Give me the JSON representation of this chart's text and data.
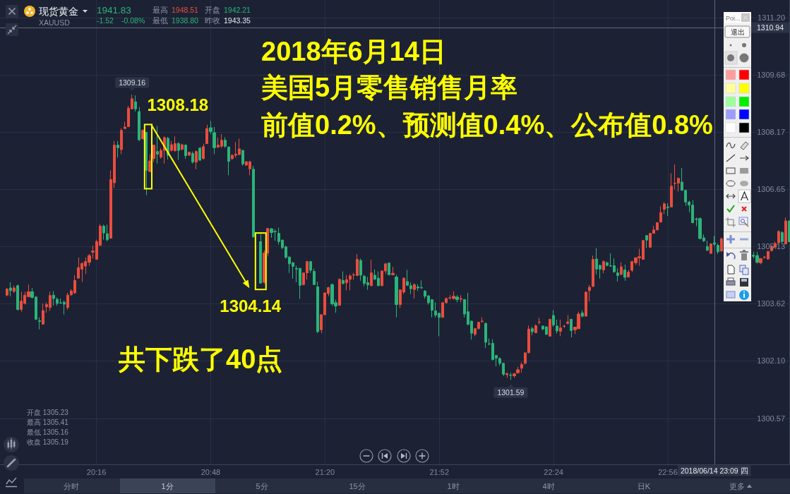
{
  "chart_data": {
    "type": "candlestick",
    "x": [
      "2018-06-14T19:51",
      "2018-06-14T19:52",
      "2018-06-14T19:53",
      "2018-06-14T19:54",
      "2018-06-14T19:55",
      "2018-06-14T19:56",
      "2018-06-14T19:57",
      "2018-06-14T19:58",
      "2018-06-14T19:59",
      "2018-06-14T20:00",
      "2018-06-14T20:01",
      "2018-06-14T20:02",
      "2018-06-14T20:03",
      "2018-06-14T20:04",
      "2018-06-14T20:05",
      "2018-06-14T20:06",
      "2018-06-14T20:07",
      "2018-06-14T20:08",
      "2018-06-14T20:09",
      "2018-06-14T20:10",
      "2018-06-14T20:11",
      "2018-06-14T20:12",
      "2018-06-14T20:13",
      "2018-06-14T20:14",
      "2018-06-14T20:15",
      "2018-06-14T20:16",
      "2018-06-14T20:17",
      "2018-06-14T20:18",
      "2018-06-14T20:19",
      "2018-06-14T20:20",
      "2018-06-14T20:21",
      "2018-06-14T20:22",
      "2018-06-14T20:23",
      "2018-06-14T20:24",
      "2018-06-14T20:25",
      "2018-06-14T20:26",
      "2018-06-14T20:27",
      "2018-06-14T20:28",
      "2018-06-14T20:29",
      "2018-06-14T20:30",
      "2018-06-14T20:31",
      "2018-06-14T20:32",
      "2018-06-14T20:33",
      "2018-06-14T20:34",
      "2018-06-14T20:35",
      "2018-06-14T20:36",
      "2018-06-14T20:37",
      "2018-06-14T20:38",
      "2018-06-14T20:39",
      "2018-06-14T20:40",
      "2018-06-14T20:41",
      "2018-06-14T20:42",
      "2018-06-14T20:43",
      "2018-06-14T20:44",
      "2018-06-14T20:45",
      "2018-06-14T20:46",
      "2018-06-14T20:47",
      "2018-06-14T20:48",
      "2018-06-14T20:49",
      "2018-06-14T20:50",
      "2018-06-14T20:51",
      "2018-06-14T20:52",
      "2018-06-14T20:53",
      "2018-06-14T20:54",
      "2018-06-14T20:55",
      "2018-06-14T20:56",
      "2018-06-14T20:57",
      "2018-06-14T20:58",
      "2018-06-14T20:59",
      "2018-06-14T21:00",
      "2018-06-14T21:02",
      "2018-06-14T21:03",
      "2018-06-14T21:04",
      "2018-06-14T21:05",
      "2018-06-14T21:06",
      "2018-06-14T21:07",
      "2018-06-14T21:08",
      "2018-06-14T21:09",
      "2018-06-14T21:10",
      "2018-06-14T21:11",
      "2018-06-14T21:12",
      "2018-06-14T21:13",
      "2018-06-14T21:14",
      "2018-06-14T21:15",
      "2018-06-14T21:16",
      "2018-06-14T21:17",
      "2018-06-14T21:18",
      "2018-06-14T21:19",
      "2018-06-14T21:20",
      "2018-06-14T21:21",
      "2018-06-14T21:22",
      "2018-06-14T21:23",
      "2018-06-14T21:24",
      "2018-06-14T21:25",
      "2018-06-14T21:26",
      "2018-06-14T21:27",
      "2018-06-14T21:28",
      "2018-06-14T21:29",
      "2018-06-14T21:30",
      "2018-06-14T21:31",
      "2018-06-14T21:32",
      "2018-06-14T21:33",
      "2018-06-14T21:34",
      "2018-06-14T21:35",
      "2018-06-14T21:36",
      "2018-06-14T21:37",
      "2018-06-14T21:38",
      "2018-06-14T21:39",
      "2018-06-14T21:40",
      "2018-06-14T21:41",
      "2018-06-14T21:42",
      "2018-06-14T21:43",
      "2018-06-14T21:44",
      "2018-06-14T21:45",
      "2018-06-14T21:46",
      "2018-06-14T21:47",
      "2018-06-14T21:48",
      "2018-06-14T21:49",
      "2018-06-14T21:50",
      "2018-06-14T21:51",
      "2018-06-14T21:52",
      "2018-06-14T21:53",
      "2018-06-14T21:54",
      "2018-06-14T21:55",
      "2018-06-14T21:56",
      "2018-06-14T21:57",
      "2018-06-14T21:58",
      "2018-06-14T21:59",
      "2018-06-14T22:00",
      "2018-06-14T22:01",
      "2018-06-14T22:02",
      "2018-06-14T22:03",
      "2018-06-14T22:04",
      "2018-06-14T22:05",
      "2018-06-14T22:06",
      "2018-06-14T22:07",
      "2018-06-14T22:08",
      "2018-06-14T22:09",
      "2018-06-14T22:10",
      "2018-06-14T22:11",
      "2018-06-14T22:12",
      "2018-06-14T22:13",
      "2018-06-14T22:14",
      "2018-06-14T22:15",
      "2018-06-14T22:16",
      "2018-06-14T22:17",
      "2018-06-14T22:18",
      "2018-06-14T22:19",
      "2018-06-14T22:20",
      "2018-06-14T22:21",
      "2018-06-14T22:22",
      "2018-06-14T22:23",
      "2018-06-14T22:24",
      "2018-06-14T22:25",
      "2018-06-14T22:26",
      "2018-06-14T22:27",
      "2018-06-14T22:28",
      "2018-06-14T22:29",
      "2018-06-14T22:30",
      "2018-06-14T22:31",
      "2018-06-14T22:32",
      "2018-06-14T22:33",
      "2018-06-14T22:34",
      "2018-06-14T22:35",
      "2018-06-14T22:36",
      "2018-06-14T22:37",
      "2018-06-14T22:38",
      "2018-06-14T22:39",
      "2018-06-14T22:40",
      "2018-06-14T22:41",
      "2018-06-14T22:42",
      "2018-06-14T22:43",
      "2018-06-14T22:44",
      "2018-06-14T22:45",
      "2018-06-14T22:46",
      "2018-06-14T22:47",
      "2018-06-14T22:48",
      "2018-06-14T22:49",
      "2018-06-14T22:50",
      "2018-06-14T22:51",
      "2018-06-14T22:52",
      "2018-06-14T22:53",
      "2018-06-14T22:54",
      "2018-06-14T22:55",
      "2018-06-14T22:56",
      "2018-06-14T22:57",
      "2018-06-14T22:58",
      "2018-06-14T22:59",
      "2018-06-14T23:00",
      "2018-06-14T23:01",
      "2018-06-14T23:02",
      "2018-06-14T23:03",
      "2018-06-14T23:04",
      "2018-06-14T23:05",
      "2018-06-14T23:06",
      "2018-06-14T23:07",
      "2018-06-14T23:08",
      "2018-06-14T23:09",
      "2018-06-14T23:10",
      "2018-06-14T23:11",
      "2018-06-14T23:20",
      "2018-06-14T23:21",
      "2018-06-14T23:22",
      "2018-06-14T23:23",
      "2018-06-14T23:24",
      "2018-06-14T23:25",
      "2018-06-14T23:26",
      "2018-06-14T23:27",
      "2018-06-14T23:28",
      "2018-06-14T23:29",
      "2018-06-14T23:30"
    ],
    "ohlc": [
      [
        1303.84,
        1304.03,
        1303.81,
        1304.0
      ],
      [
        1304.03,
        1304.18,
        1303.81,
        1303.96
      ],
      [
        1303.94,
        1304.09,
        1303.9,
        1304.03
      ],
      [
        1304.09,
        1304.12,
        1303.43,
        1303.46
      ],
      [
        1303.46,
        1303.93,
        1303.4,
        1303.68
      ],
      [
        1303.62,
        1303.93,
        1303.59,
        1303.84
      ],
      [
        1303.8,
        1304.12,
        1303.78,
        1303.93
      ],
      [
        1303.93,
        1304.03,
        1303.75,
        1303.78
      ],
      [
        1303.79,
        1303.81,
        1303.18,
        1303.2
      ],
      [
        1303.16,
        1303.25,
        1302.93,
        1303.14
      ],
      [
        1303.07,
        1303.62,
        1303.06,
        1303.43
      ],
      [
        1303.53,
        1303.65,
        1303.37,
        1303.59
      ],
      [
        1303.51,
        1303.93,
        1303.42,
        1303.83
      ],
      [
        1303.84,
        1303.95,
        1303.56,
        1303.75
      ],
      [
        1303.73,
        1303.78,
        1303.56,
        1303.62
      ],
      [
        1303.64,
        1303.75,
        1303.61,
        1303.63
      ],
      [
        1303.65,
        1303.7,
        1303.33,
        1303.6
      ],
      [
        1303.51,
        1303.9,
        1303.45,
        1303.84
      ],
      [
        1303.85,
        1304.0,
        1303.82,
        1303.95
      ],
      [
        1303.9,
        1304.37,
        1303.87,
        1304.23
      ],
      [
        1304.29,
        1304.84,
        1304.28,
        1304.57
      ],
      [
        1304.53,
        1304.71,
        1304.19,
        1304.68
      ],
      [
        1304.61,
        1304.84,
        1304.4,
        1304.73
      ],
      [
        1304.71,
        1304.93,
        1304.62,
        1304.89
      ],
      [
        1304.98,
        1305.15,
        1304.81,
        1305.01
      ],
      [
        1304.79,
        1305.31,
        1304.78,
        1305.26
      ],
      [
        1305.16,
        1305.73,
        1305.15,
        1305.67
      ],
      [
        1305.67,
        1305.71,
        1305.31,
        1305.49
      ],
      [
        1305.47,
        1305.71,
        1305.27,
        1305.31
      ],
      [
        1305.35,
        1307.15,
        1305.34,
        1306.91
      ],
      [
        1306.82,
        1307.93,
        1306.68,
        1307.82
      ],
      [
        1307.82,
        1307.93,
        1307.49,
        1307.75
      ],
      [
        1307.7,
        1308.27,
        1307.58,
        1308.21
      ],
      [
        1308.26,
        1308.44,
        1308.24,
        1308.3
      ],
      [
        1308.31,
        1308.86,
        1308.3,
        1308.8
      ],
      [
        1308.78,
        1309.16,
        1308.77,
        1309.05
      ],
      [
        1308.97,
        1309.14,
        1308.71,
        1308.78
      ],
      [
        1308.71,
        1308.83,
        1307.93,
        1307.96
      ],
      [
        1307.99,
        1308.24,
        1307.96,
        1308.21
      ],
      [
        1308.16,
        1308.18,
        1306.49,
        1307.15
      ],
      [
        1307.12,
        1307.58,
        1307.1,
        1307.4
      ],
      [
        1307.46,
        1307.83,
        1307.37,
        1307.82
      ],
      [
        1307.65,
        1308.33,
        1307.33,
        1307.58
      ],
      [
        1307.5,
        1307.74,
        1307.46,
        1307.68
      ],
      [
        1307.68,
        1308.05,
        1307.33,
        1308.02
      ],
      [
        1308.0,
        1308.04,
        1307.44,
        1307.55
      ],
      [
        1307.68,
        1307.93,
        1307.65,
        1307.83
      ],
      [
        1307.67,
        1308.05,
        1307.65,
        1307.86
      ],
      [
        1307.86,
        1307.9,
        1307.43,
        1307.68
      ],
      [
        1307.71,
        1307.86,
        1307.68,
        1307.83
      ],
      [
        1307.82,
        1307.84,
        1307.46,
        1307.54
      ],
      [
        1307.55,
        1307.65,
        1307.54,
        1307.63
      ],
      [
        1307.6,
        1307.65,
        1307.33,
        1307.37
      ],
      [
        1307.37,
        1307.68,
        1307.18,
        1307.65
      ],
      [
        1307.74,
        1307.77,
        1307.4,
        1307.42
      ],
      [
        1307.46,
        1307.86,
        1307.44,
        1307.78
      ],
      [
        1307.86,
        1308.36,
        1307.85,
        1308.26
      ],
      [
        1308.28,
        1308.46,
        1308.11,
        1308.18
      ],
      [
        1308.15,
        1308.3,
        1307.58,
        1307.75
      ],
      [
        1307.77,
        1308.02,
        1307.74,
        1307.82
      ],
      [
        1307.79,
        1308.11,
        1307.75,
        1307.95
      ],
      [
        1307.95,
        1308.03,
        1307.75,
        1307.79
      ],
      [
        1307.77,
        1307.78,
        1307.02,
        1307.39
      ],
      [
        1307.46,
        1307.58,
        1307.43,
        1307.55
      ],
      [
        1307.55,
        1307.9,
        1307.49,
        1307.58
      ],
      [
        1307.57,
        1307.99,
        1307.55,
        1307.72
      ],
      [
        1307.68,
        1307.69,
        1307.27,
        1307.32
      ],
      [
        1307.29,
        1307.4,
        1307.27,
        1307.38
      ],
      [
        1307.19,
        1307.4,
        1307.02,
        1307.38
      ],
      [
        1307.18,
        1307.27,
        1305.36,
        1305.39
      ],
      [
        1305.26,
        1305.46,
        1304.14,
        1304.16
      ],
      [
        1304.18,
        1305.03,
        1304.14,
        1304.96
      ],
      [
        1304.96,
        1305.62,
        1304.87,
        1305.61
      ],
      [
        1305.6,
        1305.62,
        1305.36,
        1305.5
      ],
      [
        1305.53,
        1305.59,
        1305.28,
        1305.52
      ],
      [
        1305.48,
        1305.63,
        1305.18,
        1305.26
      ],
      [
        1305.3,
        1305.31,
        1305.06,
        1305.1
      ],
      [
        1305.12,
        1305.15,
        1304.81,
        1304.84
      ],
      [
        1304.85,
        1304.87,
        1304.43,
        1304.67
      ],
      [
        1304.7,
        1304.72,
        1304.28,
        1304.6
      ],
      [
        1304.55,
        1304.62,
        1304.18,
        1304.53
      ],
      [
        1304.55,
        1304.56,
        1303.74,
        1304.1
      ],
      [
        1304.12,
        1304.44,
        1304.1,
        1304.43
      ],
      [
        1304.43,
        1304.75,
        1304.25,
        1304.73
      ],
      [
        1304.73,
        1304.75,
        1304.43,
        1304.5
      ],
      [
        1304.47,
        1304.54,
        1304.11,
        1304.12
      ],
      [
        1304.06,
        1304.2,
        1302.83,
        1302.87
      ],
      [
        1302.92,
        1303.34,
        1302.83,
        1303.32
      ],
      [
        1303.32,
        1303.91,
        1303.31,
        1303.9
      ],
      [
        1303.88,
        1304.06,
        1303.81,
        1304.04
      ],
      [
        1304.12,
        1304.15,
        1303.56,
        1303.61
      ],
      [
        1303.64,
        1303.72,
        1303.37,
        1303.55
      ],
      [
        1303.57,
        1304.28,
        1303.56,
        1304.26
      ],
      [
        1304.23,
        1304.47,
        1304.12,
        1304.15
      ],
      [
        1304.17,
        1304.37,
        1303.97,
        1304.25
      ],
      [
        1304.26,
        1304.4,
        1303.97,
        1304.35
      ],
      [
        1304.37,
        1304.43,
        1304.25,
        1304.38
      ],
      [
        1304.36,
        1304.93,
        1304.35,
        1304.79
      ],
      [
        1304.76,
        1304.81,
        1304.22,
        1304.37
      ],
      [
        1304.34,
        1304.38,
        1304.08,
        1304.15
      ],
      [
        1304.17,
        1304.32,
        1303.98,
        1304.11
      ],
      [
        1304.09,
        1304.78,
        1304.08,
        1304.43
      ],
      [
        1304.37,
        1304.52,
        1304.25,
        1304.26
      ],
      [
        1304.29,
        1304.47,
        1304.08,
        1304.09
      ],
      [
        1304.09,
        1304.5,
        1304.08,
        1304.48
      ],
      [
        1304.48,
        1304.69,
        1304.4,
        1304.67
      ],
      [
        1304.69,
        1304.71,
        1304.37,
        1304.38
      ],
      [
        1304.38,
        1304.59,
        1304.37,
        1304.42
      ],
      [
        1304.32,
        1304.38,
        1303.25,
        1303.59
      ],
      [
        1303.59,
        1303.99,
        1303.5,
        1303.98
      ],
      [
        1303.92,
        1304.31,
        1303.87,
        1304.29
      ],
      [
        1304.2,
        1304.51,
        1304.09,
        1304.1
      ],
      [
        1304.09,
        1304.18,
        1303.87,
        1304.01
      ],
      [
        1303.99,
        1304.15,
        1303.75,
        1304.12
      ],
      [
        1304.06,
        1304.13,
        1303.95,
        1304.03
      ],
      [
        1304.04,
        1304.23,
        1304.01,
        1304.03
      ],
      [
        1303.95,
        1303.97,
        1303.75,
        1303.81
      ],
      [
        1303.82,
        1303.84,
        1303.59,
        1303.64
      ],
      [
        1303.72,
        1303.73,
        1303.25,
        1303.44
      ],
      [
        1303.42,
        1303.65,
        1303.25,
        1303.31
      ],
      [
        1303.36,
        1303.37,
        1302.75,
        1303.25
      ],
      [
        1303.25,
        1303.65,
        1303.24,
        1303.64
      ],
      [
        1303.64,
        1303.78,
        1303.62,
        1303.75
      ],
      [
        1303.76,
        1303.84,
        1303.72,
        1303.77
      ],
      [
        1303.75,
        1303.94,
        1303.72,
        1303.81
      ],
      [
        1303.79,
        1303.84,
        1303.65,
        1303.72
      ],
      [
        1303.73,
        1303.84,
        1303.65,
        1303.75
      ],
      [
        1303.72,
        1303.74,
        1303.25,
        1303.34
      ],
      [
        1303.4,
        1303.9,
        1303.05,
        1303.06
      ],
      [
        1303.15,
        1303.16,
        1302.66,
        1302.83
      ],
      [
        1302.8,
        1302.97,
        1302.75,
        1302.95
      ],
      [
        1302.95,
        1303.13,
        1302.94,
        1303.12
      ],
      [
        1303.14,
        1303.25,
        1303.11,
        1303.15
      ],
      [
        1303.09,
        1303.11,
        1302.44,
        1302.59
      ],
      [
        1302.55,
        1302.69,
        1302.51,
        1302.54
      ],
      [
        1302.56,
        1302.67,
        1302.11,
        1302.13
      ],
      [
        1302.24,
        1302.25,
        1301.95,
        1302.17
      ],
      [
        1302.16,
        1302.19,
        1301.97,
        1302.03
      ],
      [
        1302.03,
        1302.05,
        1301.69,
        1301.74
      ],
      [
        1301.73,
        1301.78,
        1301.65,
        1301.76
      ],
      [
        1301.72,
        1301.78,
        1301.59,
        1301.71
      ],
      [
        1301.7,
        1301.78,
        1301.65,
        1301.75
      ],
      [
        1301.78,
        1301.94,
        1301.76,
        1301.86
      ],
      [
        1301.9,
        1302.06,
        1301.78,
        1302.0
      ],
      [
        1302.03,
        1302.32,
        1302.0,
        1302.31
      ],
      [
        1302.31,
        1303.03,
        1302.31,
        1302.94
      ],
      [
        1302.95,
        1303.0,
        1302.78,
        1302.87
      ],
      [
        1302.84,
        1303.06,
        1302.83,
        1303.03
      ],
      [
        1303.12,
        1303.24,
        1303.06,
        1303.13
      ],
      [
        1303.02,
        1303.03,
        1302.91,
        1302.94
      ],
      [
        1303.0,
        1303.01,
        1302.78,
        1302.8
      ],
      [
        1302.75,
        1303.21,
        1302.74,
        1303.2
      ],
      [
        1303.3,
        1303.44,
        1303.0,
        1303.05
      ],
      [
        1303.02,
        1303.19,
        1302.82,
        1302.89
      ],
      [
        1302.88,
        1303.19,
        1302.75,
        1302.97
      ],
      [
        1303.01,
        1303.05,
        1302.97,
        1303.02
      ],
      [
        1303.09,
        1303.31,
        1303.06,
        1303.13
      ],
      [
        1303.2,
        1303.21,
        1302.72,
        1302.9
      ],
      [
        1302.92,
        1303.0,
        1302.81,
        1302.99
      ],
      [
        1302.95,
        1303.4,
        1302.94,
        1303.34
      ],
      [
        1303.37,
        1303.44,
        1303.25,
        1303.28
      ],
      [
        1303.28,
        1303.94,
        1303.27,
        1303.92
      ],
      [
        1303.96,
        1304.11,
        1303.67,
        1304.05
      ],
      [
        1304.07,
        1304.89,
        1304.06,
        1304.79
      ],
      [
        1304.8,
        1305.09,
        1304.39,
        1304.53
      ],
      [
        1304.63,
        1304.65,
        1304.28,
        1304.53
      ],
      [
        1304.51,
        1304.76,
        1304.42,
        1304.73
      ],
      [
        1304.7,
        1304.73,
        1304.6,
        1304.63
      ],
      [
        1304.62,
        1304.95,
        1304.59,
        1304.61
      ],
      [
        1304.62,
        1304.81,
        1304.43,
        1304.46
      ],
      [
        1304.43,
        1304.55,
        1304.2,
        1304.36
      ],
      [
        1304.39,
        1304.71,
        1304.37,
        1304.59
      ],
      [
        1304.51,
        1304.65,
        1304.22,
        1304.31
      ],
      [
        1304.32,
        1304.51,
        1304.31,
        1304.45
      ],
      [
        1304.5,
        1304.75,
        1304.45,
        1304.73
      ],
      [
        1304.7,
        1304.84,
        1304.64,
        1304.83
      ],
      [
        1304.83,
        1305.07,
        1304.62,
        1304.86
      ],
      [
        1304.79,
        1305.3,
        1304.78,
        1305.29
      ],
      [
        1305.42,
        1305.43,
        1305.09,
        1305.3
      ],
      [
        1305.11,
        1305.49,
        1305.1,
        1305.48
      ],
      [
        1305.48,
        1305.68,
        1305.47,
        1305.57
      ],
      [
        1305.57,
        1305.78,
        1305.56,
        1305.76
      ],
      [
        1305.78,
        1306.2,
        1305.76,
        1306.03
      ],
      [
        1306.12,
        1306.31,
        1305.99,
        1306.26
      ],
      [
        1306.18,
        1306.28,
        1305.94,
        1306.16
      ],
      [
        1306.18,
        1307.07,
        1306.17,
        1306.73
      ],
      [
        1306.8,
        1307.31,
        1306.65,
        1306.81
      ],
      [
        1306.81,
        1306.96,
        1306.59,
        1306.94
      ],
      [
        1306.84,
        1307.21,
        1306.61,
        1306.62
      ],
      [
        1306.62,
        1306.63,
        1306.21,
        1306.31
      ],
      [
        1306.31,
        1306.34,
        1306.04,
        1306.23
      ],
      [
        1306.23,
        1306.36,
        1305.75,
        1305.76
      ],
      [
        1305.86,
        1305.9,
        1305.67,
        1305.85
      ],
      [
        1305.87,
        1305.9,
        1305.32,
        1305.34
      ],
      [
        1305.36,
        1305.45,
        1305.25,
        1305.28
      ],
      [
        1305.13,
        1305.28,
        1305.01,
        1305.03
      ],
      [
        1304.95,
        1305.21,
        1304.93,
        1305.2
      ],
      [
        1305.23,
        1305.41,
        1305.16,
        1305.19
      ],
      [
        1305.16,
        1305.21,
        1304.93,
        1304.99
      ],
      [
        1305.01,
        1305.37,
        1304.99,
        1305.33
      ],
      [
        1304.9,
        1304.99,
        1304.81,
        1304.87
      ],
      [
        1304.89,
        1304.99,
        1304.68,
        1304.71
      ],
      [
        1304.7,
        1304.82,
        1304.66,
        1304.81
      ],
      [
        1304.84,
        1304.88,
        1304.81,
        1304.85
      ],
      [
        1304.8,
        1305.01,
        1304.78,
        1305.0
      ],
      [
        1305.02,
        1305.15,
        1305.0,
        1305.12
      ],
      [
        1305.11,
        1305.26,
        1305.09,
        1305.21
      ],
      [
        1305.23,
        1305.56,
        1305.21,
        1305.53
      ],
      [
        1305.5,
        1305.54,
        1305.21,
        1305.26
      ],
      [
        1305.2,
        1305.9,
        1305.19,
        1305.81
      ],
      [
        1305.8,
        1305.83,
        1305.25,
        1305.26
      ]
    ],
    "colors": [
      "#eb4d3d",
      "#2bb47a",
      "#eb4d3d",
      "#2bb47a",
      "#eb4d3d",
      "#eb4d3d",
      "#eb4d3d",
      "#2bb47a",
      "#2bb47a",
      "#2bb47a",
      "#eb4d3d",
      "#eb4d3d",
      "#eb4d3d",
      "#2bb47a",
      "#2bb47a",
      "#2bb47a",
      "#2bb47a",
      "#eb4d3d",
      "#eb4d3d",
      "#eb4d3d",
      "#eb4d3d",
      "#eb4d3d",
      "#eb4d3d",
      "#eb4d3d",
      "#eb4d3d",
      "#eb4d3d",
      "#eb4d3d",
      "#2bb47a",
      "#2bb47a",
      "#eb4d3d",
      "#eb4d3d",
      "#2bb47a",
      "#eb4d3d",
      "#eb4d3d",
      "#eb4d3d",
      "#eb4d3d",
      "#2bb47a",
      "#2bb47a",
      "#eb4d3d",
      "#2bb47a",
      "#eb4d3d",
      "#eb4d3d",
      "#2bb47a",
      "#eb4d3d",
      "#eb4d3d",
      "#2bb47a",
      "#eb4d3d",
      "#eb4d3d",
      "#2bb47a",
      "#eb4d3d",
      "#2bb47a",
      "#eb4d3d",
      "#2bb47a",
      "#eb4d3d",
      "#2bb47a",
      "#eb4d3d",
      "#eb4d3d",
      "#2bb47a",
      "#2bb47a",
      "#eb4d3d",
      "#eb4d3d",
      "#2bb47a",
      "#2bb47a",
      "#eb4d3d",
      "#eb4d3d",
      "#eb4d3d",
      "#2bb47a",
      "#eb4d3d",
      "#eb4d3d",
      "#2bb47a",
      "#2bb47a",
      "#eb4d3d",
      "#eb4d3d",
      "#2bb47a",
      "#2bb47a",
      "#2bb47a",
      "#2bb47a",
      "#2bb47a",
      "#2bb47a",
      "#2bb47a",
      "#2bb47a",
      "#2bb47a",
      "#eb4d3d",
      "#eb4d3d",
      "#2bb47a",
      "#2bb47a",
      "#2bb47a",
      "#eb4d3d",
      "#eb4d3d",
      "#eb4d3d",
      "#2bb47a",
      "#2bb47a",
      "#eb4d3d",
      "#2bb47a",
      "#eb4d3d",
      "#eb4d3d",
      "#eb4d3d",
      "#eb4d3d",
      "#2bb47a",
      "#2bb47a",
      "#2bb47a",
      "#eb4d3d",
      "#2bb47a",
      "#2bb47a",
      "#eb4d3d",
      "#eb4d3d",
      "#2bb47a",
      "#eb4d3d",
      "#2bb47a",
      "#eb4d3d",
      "#eb4d3d",
      "#2bb47a",
      "#2bb47a",
      "#eb4d3d",
      "#2bb47a",
      "#2bb47a",
      "#2bb47a",
      "#2bb47a",
      "#2bb47a",
      "#2bb47a",
      "#2bb47a",
      "#eb4d3d",
      "#eb4d3d",
      "#eb4d3d",
      "#eb4d3d",
      "#2bb47a",
      "#eb4d3d",
      "#2bb47a",
      "#2bb47a",
      "#2bb47a",
      "#eb4d3d",
      "#eb4d3d",
      "#eb4d3d",
      "#2bb47a",
      "#2bb47a",
      "#2bb47a",
      "#2bb47a",
      "#2bb47a",
      "#2bb47a",
      "#eb4d3d",
      "#2bb47a",
      "#eb4d3d",
      "#eb4d3d",
      "#eb4d3d",
      "#eb4d3d",
      "#eb4d3d",
      "#2bb47a",
      "#eb4d3d",
      "#eb4d3d",
      "#2bb47a",
      "#2bb47a",
      "#eb4d3d",
      "#2bb47a",
      "#2bb47a",
      "#eb4d3d",
      "#eb4d3d",
      "#eb4d3d",
      "#2bb47a",
      "#eb4d3d",
      "#eb4d3d",
      "#2bb47a",
      "#eb4d3d",
      "#eb4d3d",
      "#eb4d3d",
      "#2bb47a",
      "#2bb47a",
      "#eb4d3d",
      "#2bb47a",
      "#2bb47a",
      "#2bb47a",
      "#2bb47a",
      "#eb4d3d",
      "#2bb47a",
      "#eb4d3d",
      "#eb4d3d",
      "#eb4d3d",
      "#eb4d3d",
      "#eb4d3d",
      "#2bb47a",
      "#eb4d3d",
      "#eb4d3d",
      "#eb4d3d",
      "#eb4d3d",
      "#eb4d3d",
      "#2bb47a",
      "#eb4d3d",
      "#eb4d3d",
      "#eb4d3d",
      "#2bb47a",
      "#2bb47a",
      "#2bb47a",
      "#2bb47a",
      "#2bb47a",
      "#2bb47a",
      "#2bb47a",
      "#2bb47a",
      "#eb4d3d",
      "#2bb47a",
      "#2bb47a",
      "#eb4d3d",
      "#2bb47a",
      "#2bb47a",
      "#eb4d3d",
      "#eb4d3d",
      "#eb4d3d",
      "#eb4d3d",
      "#eb4d3d",
      "#eb4d3d",
      "#2bb47a",
      "#eb4d3d",
      "#2bb47a"
    ],
    "xlim": [
      "2018-06-14T19:49",
      "2018-06-14T23:30"
    ],
    "xticks": [
      {
        "value": "2018-06-14T20:16",
        "label": "20:16"
      },
      {
        "value": "2018-06-14T20:48",
        "label": "20:48"
      },
      {
        "value": "2018-06-14T21:20",
        "label": "21:20"
      },
      {
        "value": "2018-06-14T21:52",
        "label": "21:52"
      },
      {
        "value": "2018-06-14T22:24",
        "label": "22:24"
      },
      {
        "value": "2018-06-14T22:56",
        "label": "22:56"
      }
    ],
    "ylim": [
      1299.35,
      1311.67
    ],
    "yticks": [
      1300.57,
      {
        "value": 1302.1,
        "label": "1302.10"
      },
      1303.62,
      1305.13,
      1306.65,
      1308.17,
      1309.68,
      {
        "value": 1311.2,
        "label": "1311.20"
      }
    ],
    "grid": true,
    "ref_lines": [
      {
        "axis": "x",
        "value": "2018-06-14T23:09",
        "label": "2018/06/14 23:09 四",
        "color": "#5d667a"
      },
      {
        "axis": "y",
        "value": 1310.94,
        "label": "1310.94",
        "color": "#5d667a"
      }
    ],
    "annotations": [
      "2018年6月14日",
      "美国5月零售销售月率",
      "前值0.2%、预测值0.4%、公布值0.8%",
      "共下跌了40点",
      "现货黄金",
      "XAUUSD",
      "1941.83",
      "-1.52",
      "-0.08%",
      "最高",
      "1948.51",
      "开盘",
      "1942.21",
      "最低",
      "1938.80",
      "昨收",
      "1943.35",
      "开盘 1305.23",
      "最高 1305.41",
      "最低 1305.16",
      "收盘 1305.19",
      "分时",
      "1分",
      "5分",
      "15分",
      "1时",
      "4时",
      "日K",
      "更多",
      "Poi...",
      "退出",
      {
        "text": "1309.16",
        "x": "2018-06-14T20:26",
        "y": 1309.16
      },
      {
        "text": "1301.59",
        "x": "2018-06-14T22:12",
        "y": 1301.59
      },
      {
        "text": "1308.18",
        "x": "2018-06-14T20:30",
        "y": 1308.18
      },
      {
        "text": "1304.14",
        "x": "2018-06-14T21:02",
        "y": 1304.14
      }
    ]
  }
}
